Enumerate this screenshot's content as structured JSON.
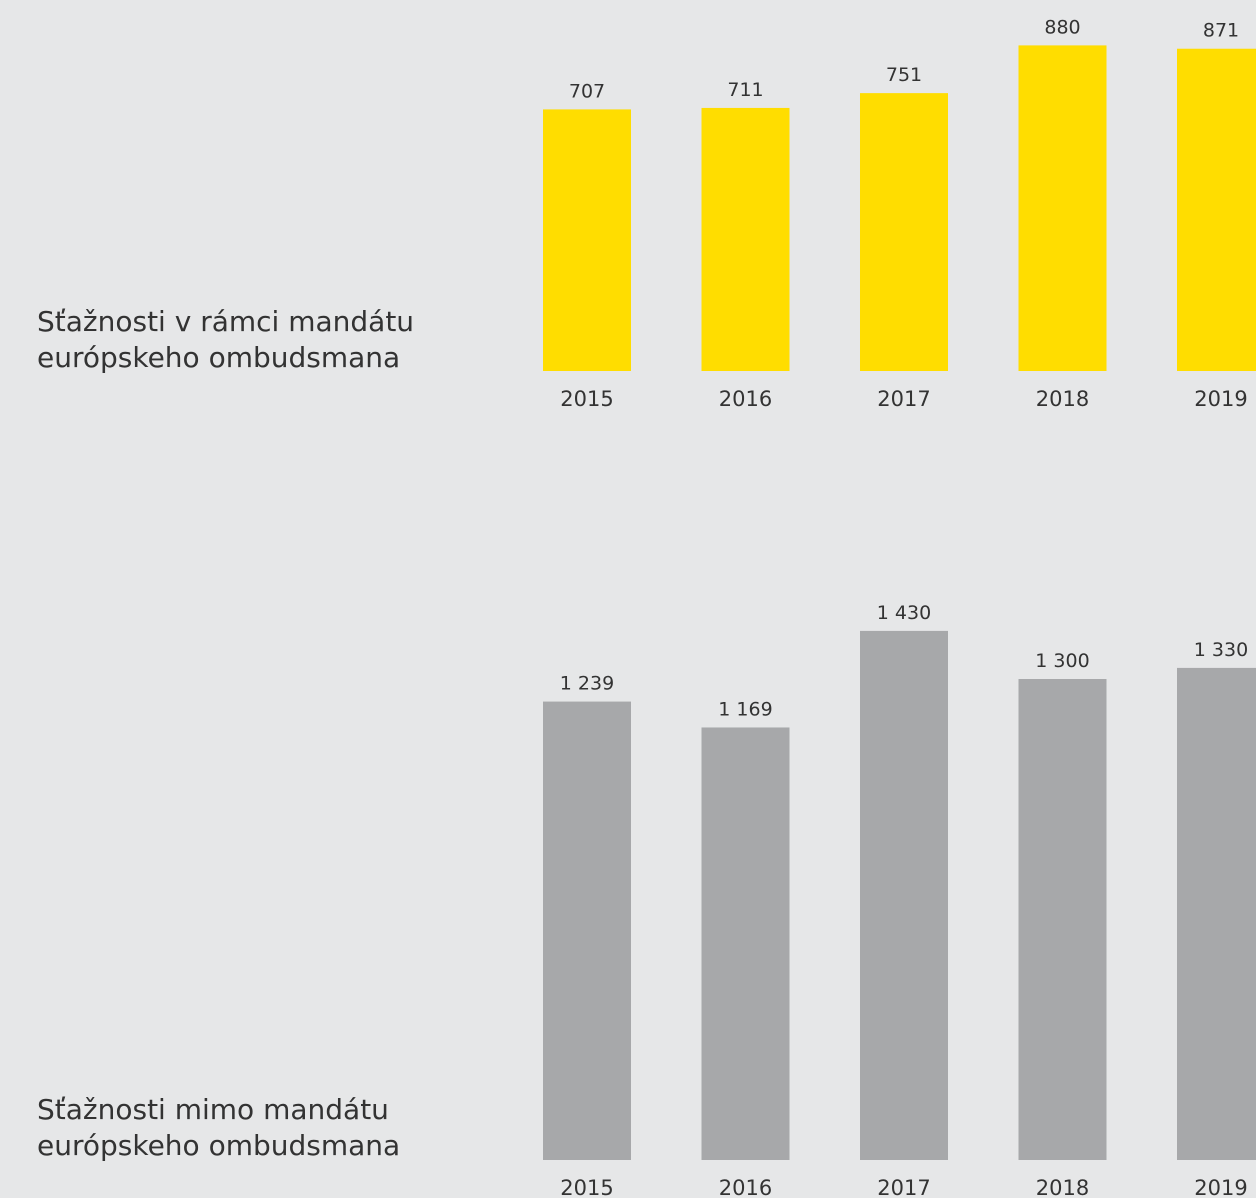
{
  "chart_data": [
    {
      "type": "bar",
      "title": "Sťažnosti v rámci mandátu\neurópskeho ombudsmana",
      "categories": [
        "2015",
        "2016",
        "2017",
        "2018",
        "2019"
      ],
      "values": [
        707,
        711,
        751,
        880,
        871
      ],
      "color": "#ffdd00"
    },
    {
      "type": "bar",
      "title": "Sťažnosti mimo mandátu\neurópskeho ombudsmana",
      "categories": [
        "2015",
        "2016",
        "2017",
        "2018",
        "2019"
      ],
      "values": [
        1239,
        1169,
        1430,
        1300,
        1330
      ],
      "value_labels": [
        "1 239",
        "1 169",
        "1 430",
        "1 300",
        "1 330"
      ],
      "color": "#a7a8aa"
    }
  ]
}
